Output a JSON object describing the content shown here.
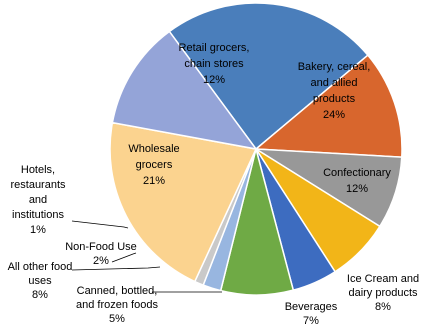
{
  "chart_data": {
    "type": "pie",
    "title": "",
    "start_angle_deg": 323.6,
    "direction": "clockwise",
    "slices": [
      {
        "label": "Bakery, cereal, and allied products",
        "value": 24,
        "display": "24%",
        "color": "#4A7EBB"
      },
      {
        "label": "Confectionary",
        "value": 12,
        "display": "12%",
        "color": "#D8662D"
      },
      {
        "label": "Ice Cream and dairy products",
        "value": 8,
        "display": "8%",
        "color": "#989898"
      },
      {
        "label": "Beverages",
        "value": 7,
        "display": "7%",
        "color": "#F2B518"
      },
      {
        "label": "Canned, bottled, and frozen foods",
        "value": 5,
        "display": "5%",
        "color": "#3D6CC0"
      },
      {
        "label": "All other food uses",
        "value": 8,
        "display": "8%",
        "color": "#6FAA45"
      },
      {
        "label": "Non-Food Use",
        "value": 2,
        "display": "2%",
        "color": "#98B6E0"
      },
      {
        "label": "Hotels, restaurants and institutions",
        "value": 1,
        "display": "1%",
        "color": "#C9C9C9"
      },
      {
        "label": "Wholesale grocers",
        "value": 21,
        "display": "21%",
        "color": "#FBD38F"
      },
      {
        "label": "Retail grocers, chain stores",
        "value": 12,
        "display": "12%",
        "color": "#94A4D8"
      }
    ],
    "label_lines": [
      [
        "Bakery, cereal,",
        "and allied",
        "products",
        "24%"
      ],
      [
        "Confectionary",
        "12%"
      ],
      [
        "Ice Cream and",
        "dairy products",
        "8%"
      ],
      [
        "Beverages",
        "7%"
      ],
      [
        "Canned, bottled,",
        "and frozen foods",
        "5%"
      ],
      [
        "All other food",
        "uses",
        "8%"
      ],
      [
        "Non-Food Use",
        "2%"
      ],
      [
        "Hotels,",
        "restaurants",
        "and",
        "institutions",
        "1%"
      ],
      [
        "Wholesale",
        "grocers",
        "21%"
      ],
      [
        "Retail grocers,",
        "chain stores",
        "12%"
      ]
    ],
    "legend": "none"
  }
}
